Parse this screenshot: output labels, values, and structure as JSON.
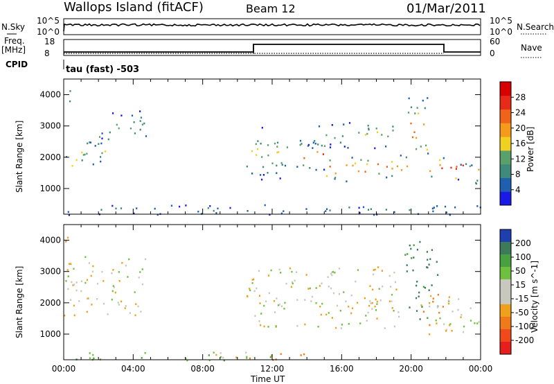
{
  "header": {
    "station": "Wallops Island (fitACF)",
    "beam": "Beam 12",
    "date": "01/Mar/2011"
  },
  "status_panel": {
    "nsky_label": "N.Sky",
    "nsky_ticks": [
      "10^5",
      "10^0"
    ],
    "nsearch_label": "N.Search",
    "nsearch_ticks": [
      "10^5",
      "10^0"
    ],
    "freq_label": "Freq.",
    "freq_unit": "[MHz]",
    "freq_ticks": [
      "18",
      "8"
    ],
    "nave_label": "Nave",
    "nave_ticks": [
      "60",
      "0"
    ],
    "cpid_label": "CPID",
    "cpid_value": "tau (fast) -503"
  },
  "colors": {
    "power_scale": [
      "#1a1ae6",
      "#1f5fb0",
      "#3f8a7a",
      "#5aa06a",
      "#f0d020",
      "#f59a1a",
      "#f0641a",
      "#e82a1a",
      "#d80000"
    ],
    "velocity_scale": [
      "#e61e1e",
      "#f04a1a",
      "#f07a1a",
      "#f0a01a",
      "#c8c8be",
      "#c8c8be",
      "#70c040",
      "#48a040",
      "#3c7a5a",
      "#1f3fb0"
    ]
  },
  "chart_data": [
    {
      "type": "heatmap",
      "name": "Power",
      "ylabel": "Slant Range [km]",
      "xlabel": "Time UT",
      "xticks": [
        "00:00",
        "04:00",
        "08:00",
        "12:00",
        "16:00",
        "20:00",
        "00:00"
      ],
      "yticks": [
        "1000",
        "2000",
        "3000",
        "4000"
      ],
      "ylim": [
        180,
        4500
      ],
      "xlim_hours": [
        0,
        24
      ],
      "colorbar_label": "Power [dB]",
      "colorbar_ticks": [
        "4",
        "8",
        "12",
        "16",
        "20",
        "24",
        "28"
      ],
      "colorbar_range": [
        0,
        32
      ],
      "scatter_bands": [
        {
          "t": [
            0.0,
            0.7
          ],
          "range": [
            1600,
            2100
          ],
          "peak": 20
        },
        {
          "t": [
            0.0,
            0.4
          ],
          "range": [
            3700,
            4300
          ],
          "peak": 14
        },
        {
          "t": [
            0.6,
            2.4
          ],
          "range": [
            1700,
            2800
          ],
          "peak": 12
        },
        {
          "t": [
            1.5,
            2.6
          ],
          "range": [
            2300,
            3000
          ],
          "peak": 10
        },
        {
          "t": [
            2.6,
            4.8
          ],
          "range": [
            2500,
            3500
          ],
          "peak": 11
        },
        {
          "t": [
            10.5,
            13.0
          ],
          "range": [
            1300,
            3000
          ],
          "peak": 14
        },
        {
          "t": [
            13.0,
            15.0
          ],
          "range": [
            1600,
            2600
          ],
          "peak": 22
        },
        {
          "t": [
            15.0,
            17.5
          ],
          "range": [
            1200,
            2100
          ],
          "peak": 24
        },
        {
          "t": [
            14.0,
            19.0
          ],
          "range": [
            2300,
            3200
          ],
          "peak": 12
        },
        {
          "t": [
            18.0,
            19.8
          ],
          "range": [
            1300,
            2200
          ],
          "peak": 20
        },
        {
          "t": [
            19.8,
            21.0
          ],
          "range": [
            1800,
            4000
          ],
          "peak": 24
        },
        {
          "t": [
            21.0,
            23.0
          ],
          "range": [
            1300,
            2100
          ],
          "peak": 26
        },
        {
          "t": [
            22.5,
            24.0
          ],
          "range": [
            1100,
            1900
          ],
          "peak": 22
        },
        {
          "t": [
            0.0,
            24.0
          ],
          "range": [
            180,
            500
          ],
          "peak": 6
        }
      ]
    },
    {
      "type": "heatmap",
      "name": "Velocity",
      "ylabel": "Slant Range [km]",
      "xlabel": "Time UT",
      "xticks": [
        "00:00",
        "04:00",
        "08:00",
        "12:00",
        "16:00",
        "20:00",
        "00:00"
      ],
      "yticks": [
        "1000",
        "2000",
        "3000",
        "4000"
      ],
      "ylim": [
        180,
        4500
      ],
      "xlim_hours": [
        0,
        24
      ],
      "colorbar_label": "Velocity [m s^-1]",
      "colorbar_ticks": [
        "200",
        "100",
        "50",
        "15",
        "-15",
        "-50",
        "-100",
        "-200"
      ],
      "colorbar_range": [
        -250,
        250
      ],
      "scatter_bands": [
        {
          "t": [
            0.0,
            0.4
          ],
          "range": [
            3700,
            4300
          ],
          "v": -50
        },
        {
          "t": [
            0.0,
            4.8
          ],
          "range": [
            1600,
            3500
          ],
          "v": 0
        },
        {
          "t": [
            10.5,
            19.5
          ],
          "range": [
            1200,
            3200
          ],
          "v": 0
        },
        {
          "t": [
            19.5,
            21.5
          ],
          "range": [
            1500,
            4000
          ],
          "v": 120
        },
        {
          "t": [
            20.5,
            22.5
          ],
          "range": [
            1300,
            2300
          ],
          "v": -60
        },
        {
          "t": [
            21.0,
            24.0
          ],
          "range": [
            1000,
            2200
          ],
          "v": 0
        },
        {
          "t": [
            0.0,
            12.0
          ],
          "range": [
            180,
            450
          ],
          "v": 40
        },
        {
          "t": [
            8.0,
            14.0
          ],
          "range": [
            180,
            400
          ],
          "v": -60
        }
      ]
    }
  ]
}
